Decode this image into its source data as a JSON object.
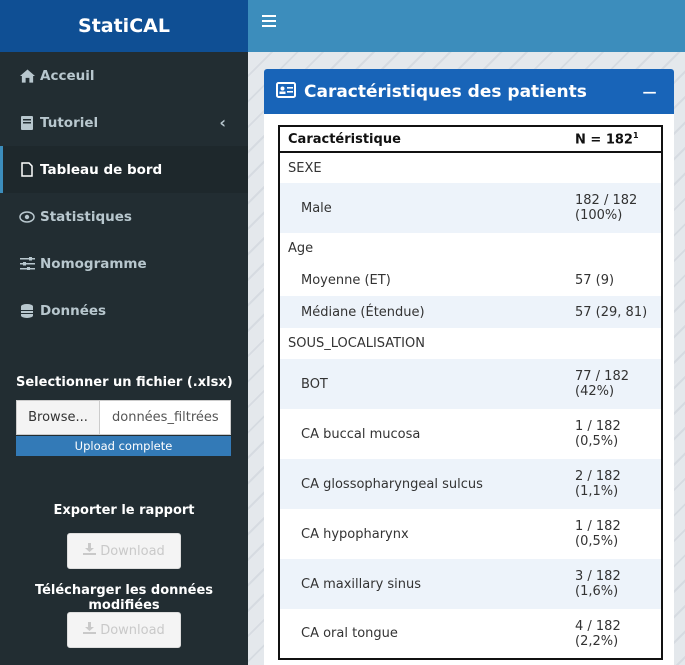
{
  "app": {
    "title": "StatiCAL"
  },
  "sidebar": {
    "items": [
      {
        "label": "Acceuil",
        "icon": "home-icon"
      },
      {
        "label": "Tutoriel",
        "icon": "book-icon"
      },
      {
        "label": "Tableau de bord",
        "icon": "file-icon"
      },
      {
        "label": "Statistiques",
        "icon": "eye-icon"
      },
      {
        "label": "Nomogramme",
        "icon": "sliders-icon"
      },
      {
        "label": "Données",
        "icon": "database-icon"
      }
    ],
    "active_index": 2,
    "file": {
      "label": "Selectionner un fichier (.xlsx)",
      "browse_label": "Browse...",
      "filename": "données_filtrées",
      "upload_status": "Upload complete"
    },
    "export_label": "Exporter le rapport",
    "export_button": "Download",
    "download_data_label": "Télécharger les données modifiées",
    "download_data_button": "Download"
  },
  "box": {
    "title": "Caractéristiques des patients",
    "collapse_symbol": "−",
    "header_col1": "Caractéristique",
    "header_col2": "N = 182",
    "header_col2_sup": "1",
    "rows": [
      {
        "label": "SEXE",
        "value": ""
      },
      {
        "label": "Male",
        "value": "182 / 182 (100%)"
      },
      {
        "label": "Age",
        "value": ""
      },
      {
        "label": "Moyenne (ET)",
        "value": "57 (9)"
      },
      {
        "label": "Médiane (Étendue)",
        "value": "57 (29, 81)"
      },
      {
        "label": "SOUS_LOCALISATION",
        "value": ""
      },
      {
        "label": "BOT",
        "value": "77 / 182 (42%)"
      },
      {
        "label": "CA buccal mucosa",
        "value": "1 / 182 (0,5%)"
      },
      {
        "label": "CA glossopharyngeal sulcus",
        "value": "2 / 182 (1,1%)"
      },
      {
        "label": "CA hypopharynx",
        "value": "1 / 182 (0,5%)"
      },
      {
        "label": "CA maxillary sinus",
        "value": "3 / 182 (1,6%)"
      },
      {
        "label": "CA oral tongue",
        "value": "4 / 182 (2,2%)"
      }
    ]
  }
}
